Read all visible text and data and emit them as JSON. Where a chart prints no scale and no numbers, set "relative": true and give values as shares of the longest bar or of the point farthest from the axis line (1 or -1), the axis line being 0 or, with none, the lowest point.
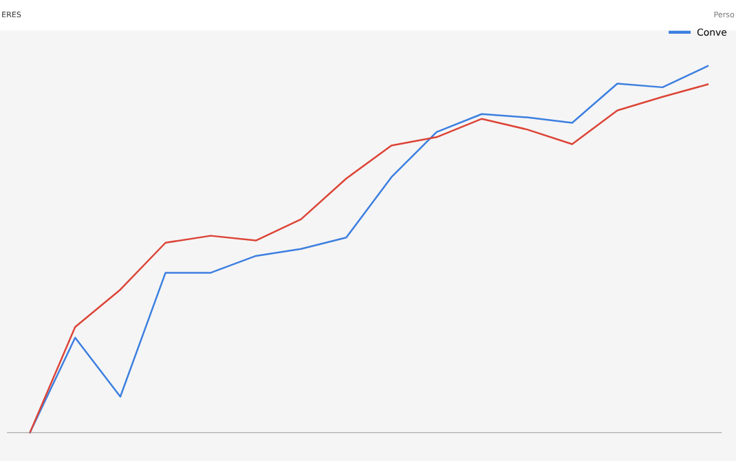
{
  "chart_data": {
    "type": "line",
    "relative": true,
    "categories": [
      null,
      null,
      null,
      null,
      null,
      null,
      null,
      null,
      null,
      null,
      null,
      null,
      null,
      null,
      null,
      null
    ],
    "series": [
      {
        "name": "Conve",
        "color": "#3c7fe0",
        "values": [
          0,
          0.259,
          0.098,
          0.436,
          0.436,
          0.482,
          0.501,
          0.532,
          0.697,
          0.82,
          0.869,
          0.86,
          0.845,
          0.952,
          0.942,
          1
        ]
      },
      {
        "color": "#dc4437",
        "values": [
          0,
          0.288,
          0.39,
          0.518,
          0.537,
          0.524,
          0.582,
          0.693,
          0.783,
          0.806,
          0.856,
          0.827,
          0.787,
          0.879,
          0.916,
          0.95
        ]
      }
    ],
    "legend": "top right",
    "marker": "none",
    "line_style": "solid",
    "grid": false,
    "annotations": [
      "ERES",
      "Perso"
    ]
  }
}
